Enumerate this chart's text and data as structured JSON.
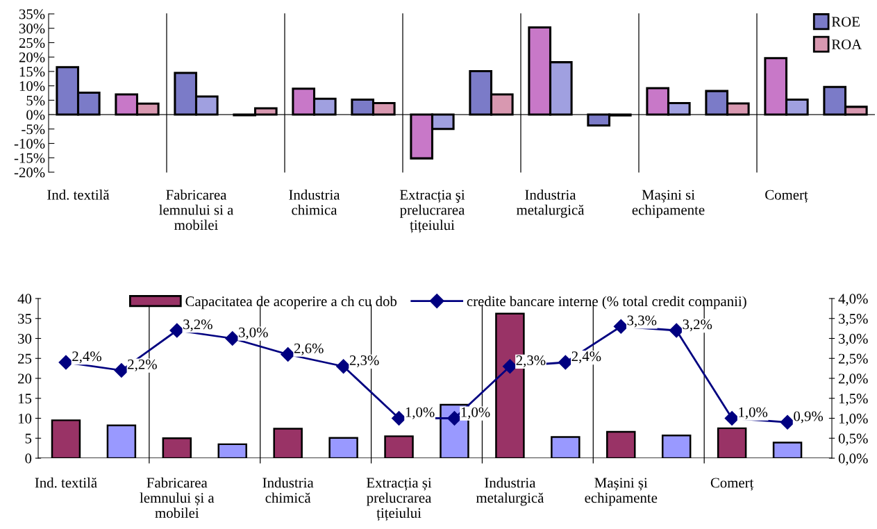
{
  "chart_data": [
    {
      "type": "bar",
      "categories": [
        "Ind. textilă",
        null,
        "Fabricarea\nlemnului si a\nmobilei",
        null,
        "Industria\nchimica",
        null,
        "Extracția şi\nprelucrarea\nțițeiului",
        null,
        "Industria\nmetalurgică",
        null,
        "Mașini si\nechipamente",
        null,
        "Comerț",
        null
      ],
      "series": [
        {
          "name": "ROE",
          "color": "#7b7bc8",
          "values": [
            16.5,
            7.0,
            14.5,
            -0.2,
            9.0,
            5.2,
            -15.2,
            15.1,
            30.3,
            -3.8,
            9.2,
            8.2,
            19.6,
            9.6
          ],
          "colors": [
            "#7b7bc8",
            "#c878c8",
            "#7b7bc8",
            "#7b7bc8",
            "#c878c8",
            "#7b7bc8",
            "#c878c8",
            "#7b7bc8",
            "#c878c8",
            "#7b7bc8",
            "#c878c8",
            "#7b7bc8",
            "#c878c8",
            "#7b7bc8"
          ]
        },
        {
          "name": "ROA",
          "color": "#d898b0",
          "values": [
            7.6,
            3.8,
            6.3,
            2.2,
            5.5,
            4.0,
            -5.0,
            7.0,
            18.2,
            -0.3,
            4.0,
            3.9,
            5.2,
            2.7
          ],
          "colors": [
            "#7b7bc8",
            "#d898b0",
            "#a0a0e0",
            "#d898b0",
            "#a0a0e0",
            "#d898b0",
            "#a0a0e0",
            "#d898b0",
            "#a0a0e0",
            "#7b7bc8",
            "#a0a0e0",
            "#d898b0",
            "#a0a0e0",
            "#d898b0"
          ]
        }
      ],
      "ylim": [
        -20,
        35
      ],
      "yticks": [
        {
          "value": -20,
          "label": "-20%"
        },
        {
          "value": -15,
          "label": "-15%"
        },
        {
          "value": -10,
          "label": "-10%"
        },
        {
          "value": -5,
          "label": "-5%"
        },
        {
          "value": 0,
          "label": "0%"
        },
        {
          "value": 5,
          "label": "5%"
        },
        {
          "value": 10,
          "label": "10%"
        },
        {
          "value": 15,
          "label": "15%"
        },
        {
          "value": 20,
          "label": "20%"
        },
        {
          "value": 25,
          "label": "25%"
        },
        {
          "value": 30,
          "label": "30%"
        },
        {
          "value": 35,
          "label": "35%"
        }
      ],
      "grid": "x",
      "legend": "top right"
    },
    {
      "type": "bar",
      "categories": [
        "Ind. textilă",
        null,
        "Fabricarea\nlemnului și a\nmobilei",
        null,
        "Industria\nchimică",
        null,
        "Extracția și\nprelucrarea\nțițeiului",
        null,
        "Industria\nmetalurgică",
        null,
        "Mașini și\nechipamente",
        null,
        "Comerț",
        null
      ],
      "series": [
        {
          "name": "Capacitatea de acoperire a ch cu dob",
          "color": "#993366",
          "values": [
            9.5,
            8.2,
            5.0,
            3.5,
            7.4,
            5.1,
            5.5,
            13.4,
            36.2,
            5.3,
            6.6,
            5.7,
            7.5,
            3.9
          ],
          "colors": [
            "#993366",
            "#9999ff",
            "#993366",
            "#9999ff",
            "#993366",
            "#9999ff",
            "#993366",
            "#9999ff",
            "#993366",
            "#9999ff",
            "#993366",
            "#9999ff",
            "#993366",
            "#9999ff"
          ]
        },
        {
          "name": "credite bancare interne (% total credit companii)",
          "type": "line",
          "axis": "y2",
          "color": "#000080",
          "marker": "diamond",
          "values": [
            2.4,
            2.2,
            3.2,
            3.0,
            2.6,
            2.3,
            1.0,
            1.0,
            2.3,
            2.4,
            3.3,
            3.2,
            1.0,
            0.9
          ],
          "value_labels": [
            "2,4%",
            "2,2%",
            "3,2%",
            "3,0%",
            "2,6%",
            "2,3%",
            "1,0%",
            "1,0%",
            "2,3%",
            "2,4%",
            "3,3%",
            "3,2%",
            "1,0%",
            "0,9%"
          ]
        }
      ],
      "ylim": [
        0,
        40
      ],
      "yticks": [
        0,
        5,
        10,
        15,
        20,
        25,
        30,
        35,
        40
      ],
      "y2lim": [
        0,
        4.0
      ],
      "y2ticks": [
        {
          "value": 0,
          "label": "0,0%"
        },
        {
          "value": 0.5,
          "label": "0,5%"
        },
        {
          "value": 1.0,
          "label": "1,0%"
        },
        {
          "value": 1.5,
          "label": "1,5%"
        },
        {
          "value": 2.0,
          "label": "2,0%"
        },
        {
          "value": 2.5,
          "label": "2,5%"
        },
        {
          "value": 3.0,
          "label": "3,0%"
        },
        {
          "value": 3.5,
          "label": "3,5%"
        },
        {
          "value": 4.0,
          "label": "4,0%"
        }
      ],
      "grid": "x",
      "legend": "top"
    }
  ]
}
